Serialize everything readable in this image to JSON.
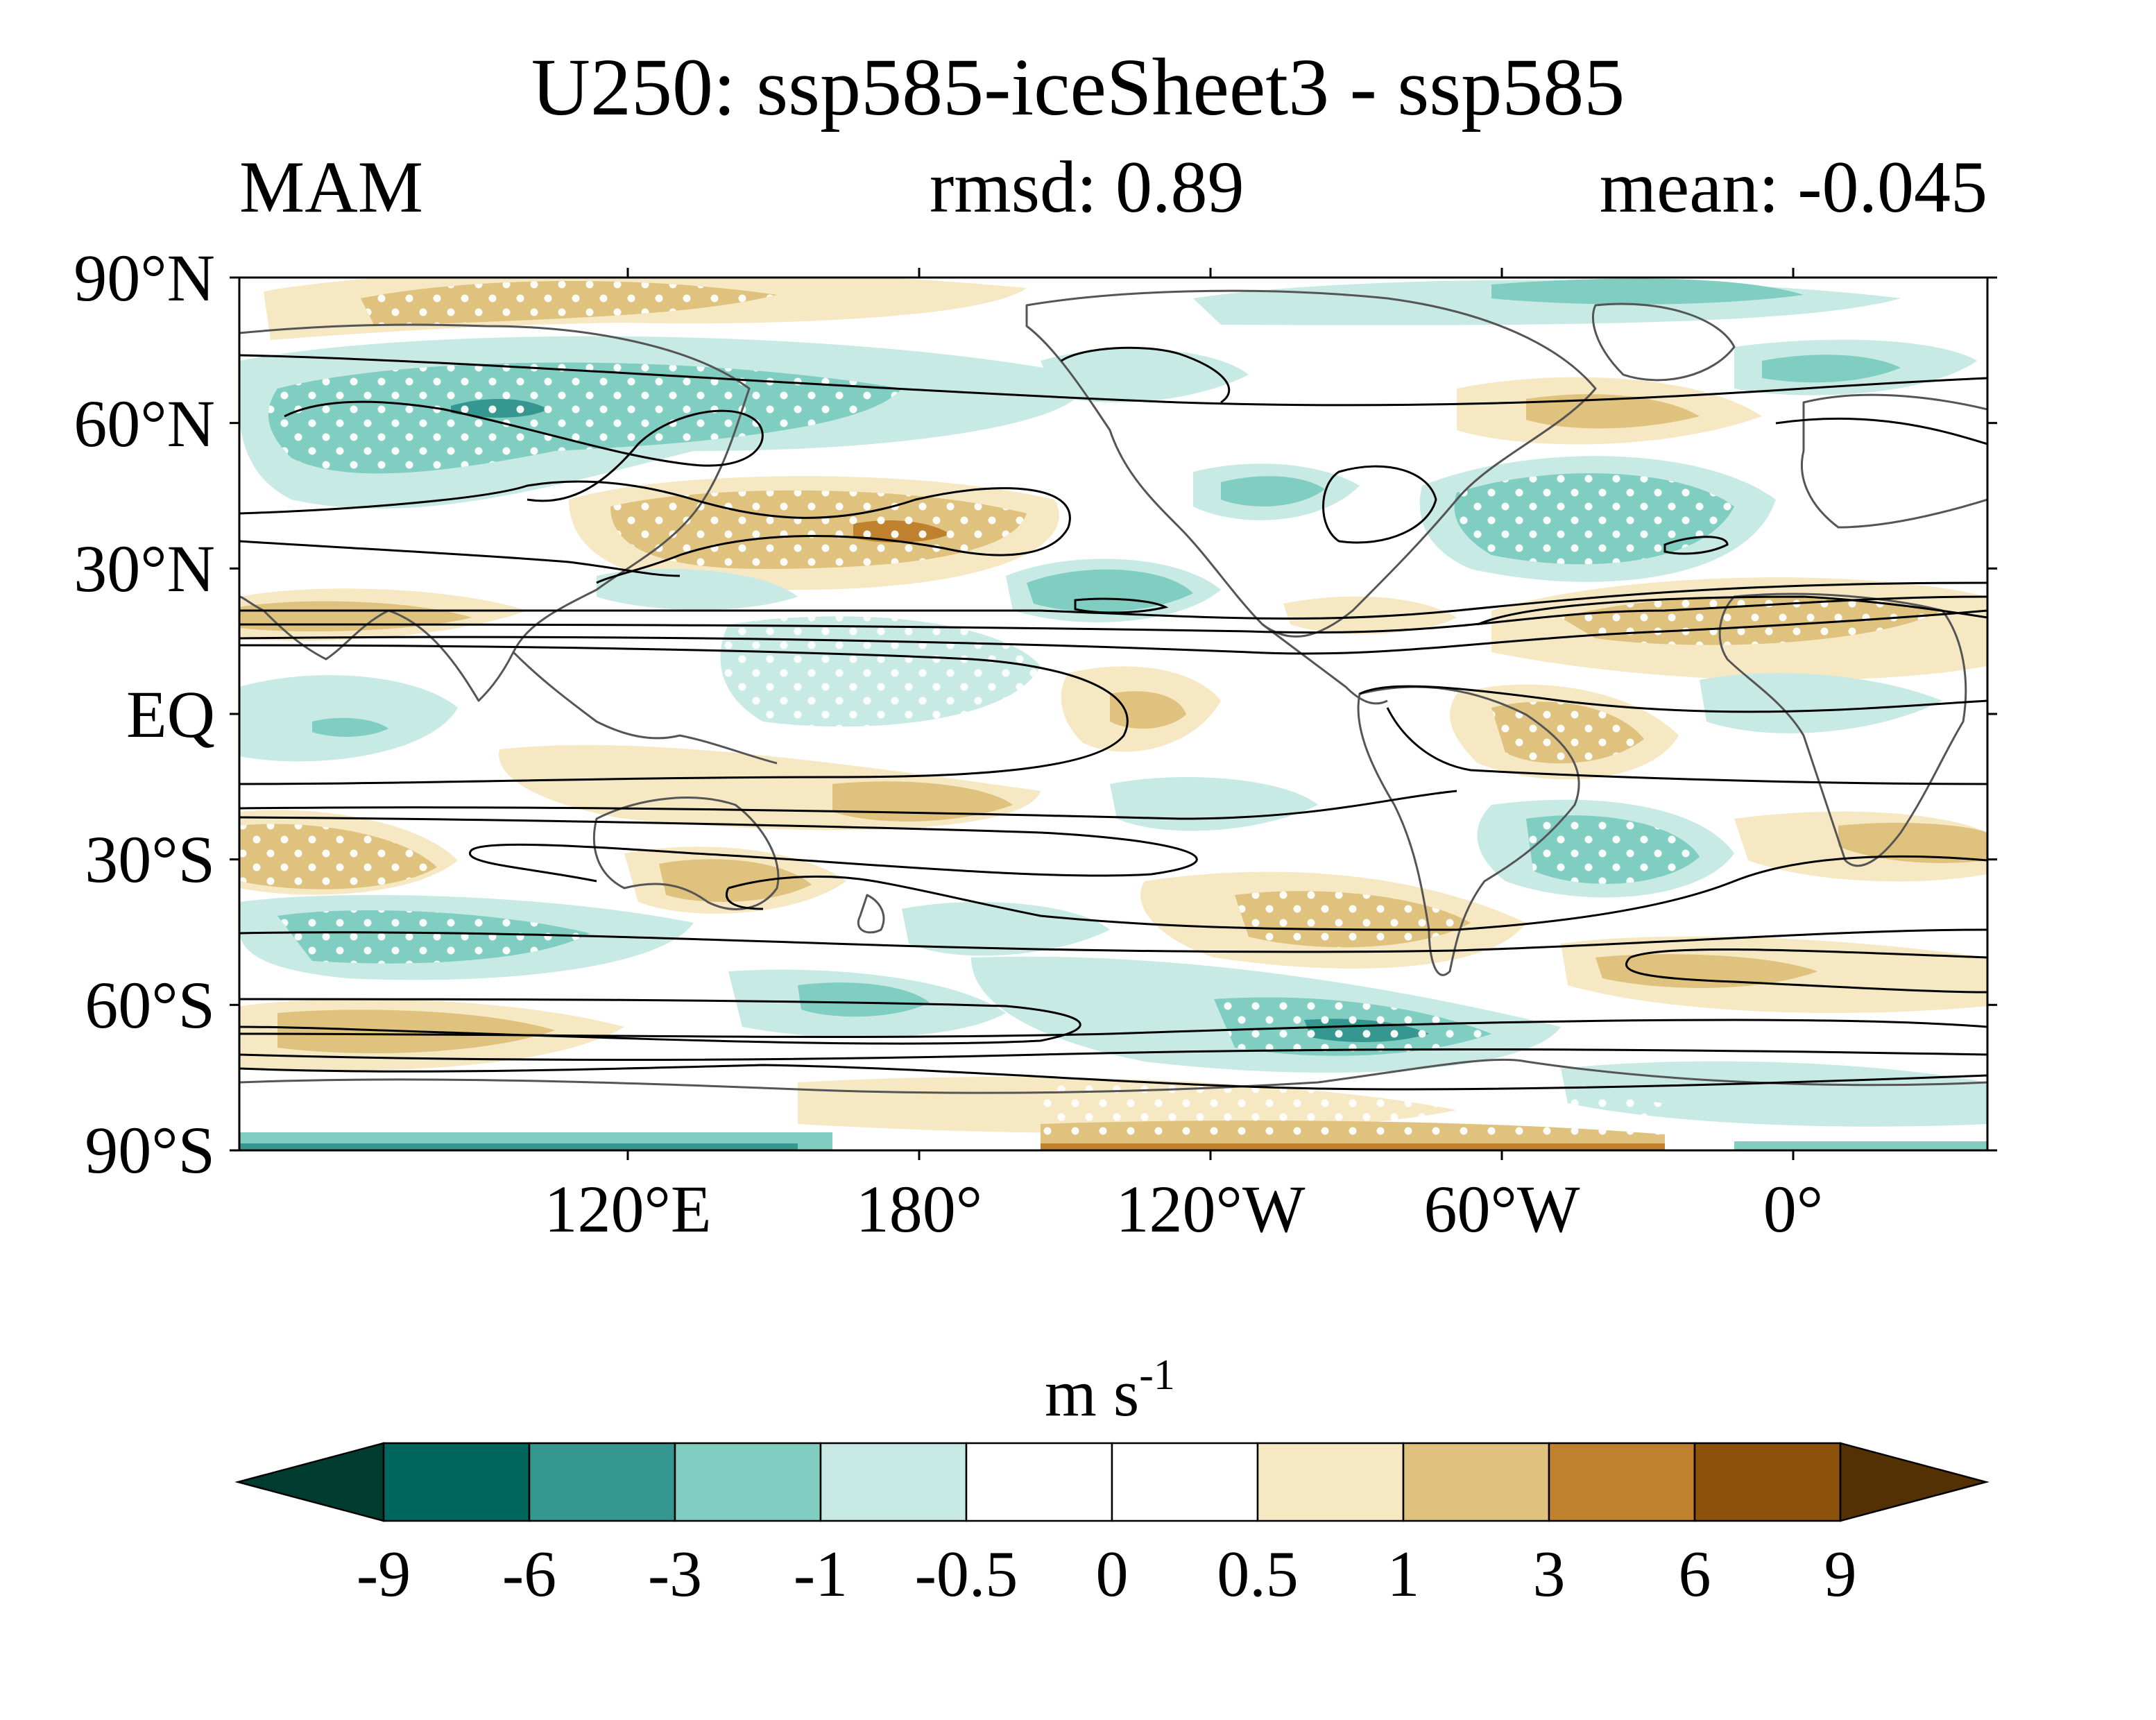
{
  "title": "U250: ssp585-iceSheet3 - ssp585",
  "season": "MAM",
  "stats": {
    "rmsd": "rmsd: 0.89",
    "mean": "mean: -0.045"
  },
  "map": {
    "lat_labels": [
      "90°N",
      "60°N",
      "30°N",
      "EQ",
      "30°S",
      "60°S",
      "90°S"
    ],
    "lon_labels": [
      "120°E",
      "180°",
      "120°W",
      "60°W",
      "0°"
    ],
    "lat_values": [
      90,
      60,
      30,
      0,
      -30,
      -60,
      -90
    ],
    "lon_values": [
      120,
      180,
      240,
      300,
      360
    ],
    "lon_range": [
      40,
      400
    ],
    "lat_range": [
      -90,
      90
    ]
  },
  "colorbar": {
    "unit_base": "m s",
    "unit_exp": "-1",
    "tick_labels": [
      "-9",
      "-6",
      "-3",
      "-1",
      "-0.5",
      "0",
      "0.5",
      "1",
      "3",
      "6",
      "9"
    ],
    "colors": [
      "#003c30",
      "#01665e",
      "#35978f",
      "#80cdc1",
      "#c7eae5",
      "#ffffff",
      "#ffffff",
      "#f6e8c3",
      "#dfc27d",
      "#bf812d",
      "#8c510a",
      "#543005"
    ]
  },
  "colors": {
    "teal_strong": "#35978f",
    "teal_mid": "#80cdc1",
    "teal_light": "#c7eae5",
    "tan_light": "#f6e8c3",
    "tan_mid": "#dfc27d",
    "tan_strong": "#bf812d",
    "contour": "#000000",
    "coastline": "#555555"
  }
}
